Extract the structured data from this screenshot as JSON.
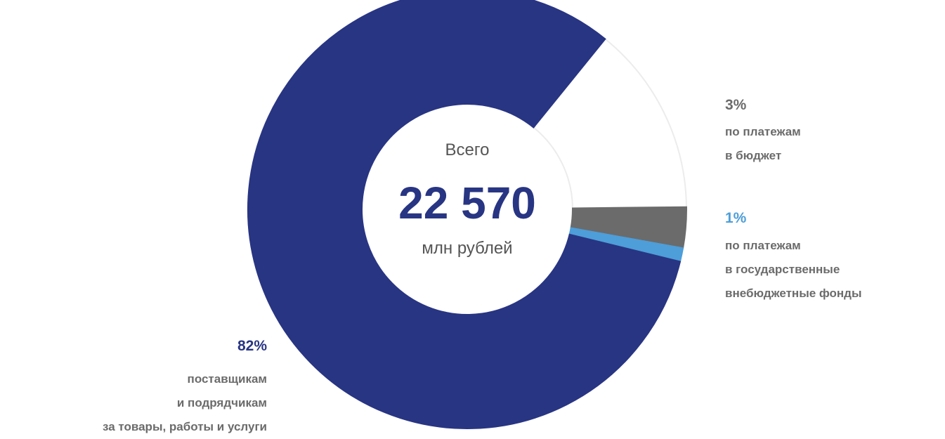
{
  "chart_data": {
    "type": "donut",
    "center_label": {
      "top": "Всего",
      "value": "22 570",
      "unit": "млн рублей"
    },
    "categories": [
      null,
      "по платежам\nв бюджет",
      "по платежам\nв государственные\nвнебюджетные фонды",
      "поставщикам\nи подрядчикам\nза товары, работы и услуги"
    ],
    "values": [
      14,
      3,
      1,
      82
    ],
    "value_labels": [
      null,
      "3%",
      "1%",
      "82%"
    ],
    "colors": [
      "#ffffff",
      "#6b6b6b",
      "#4d9ed9",
      "#283583"
    ]
  }
}
